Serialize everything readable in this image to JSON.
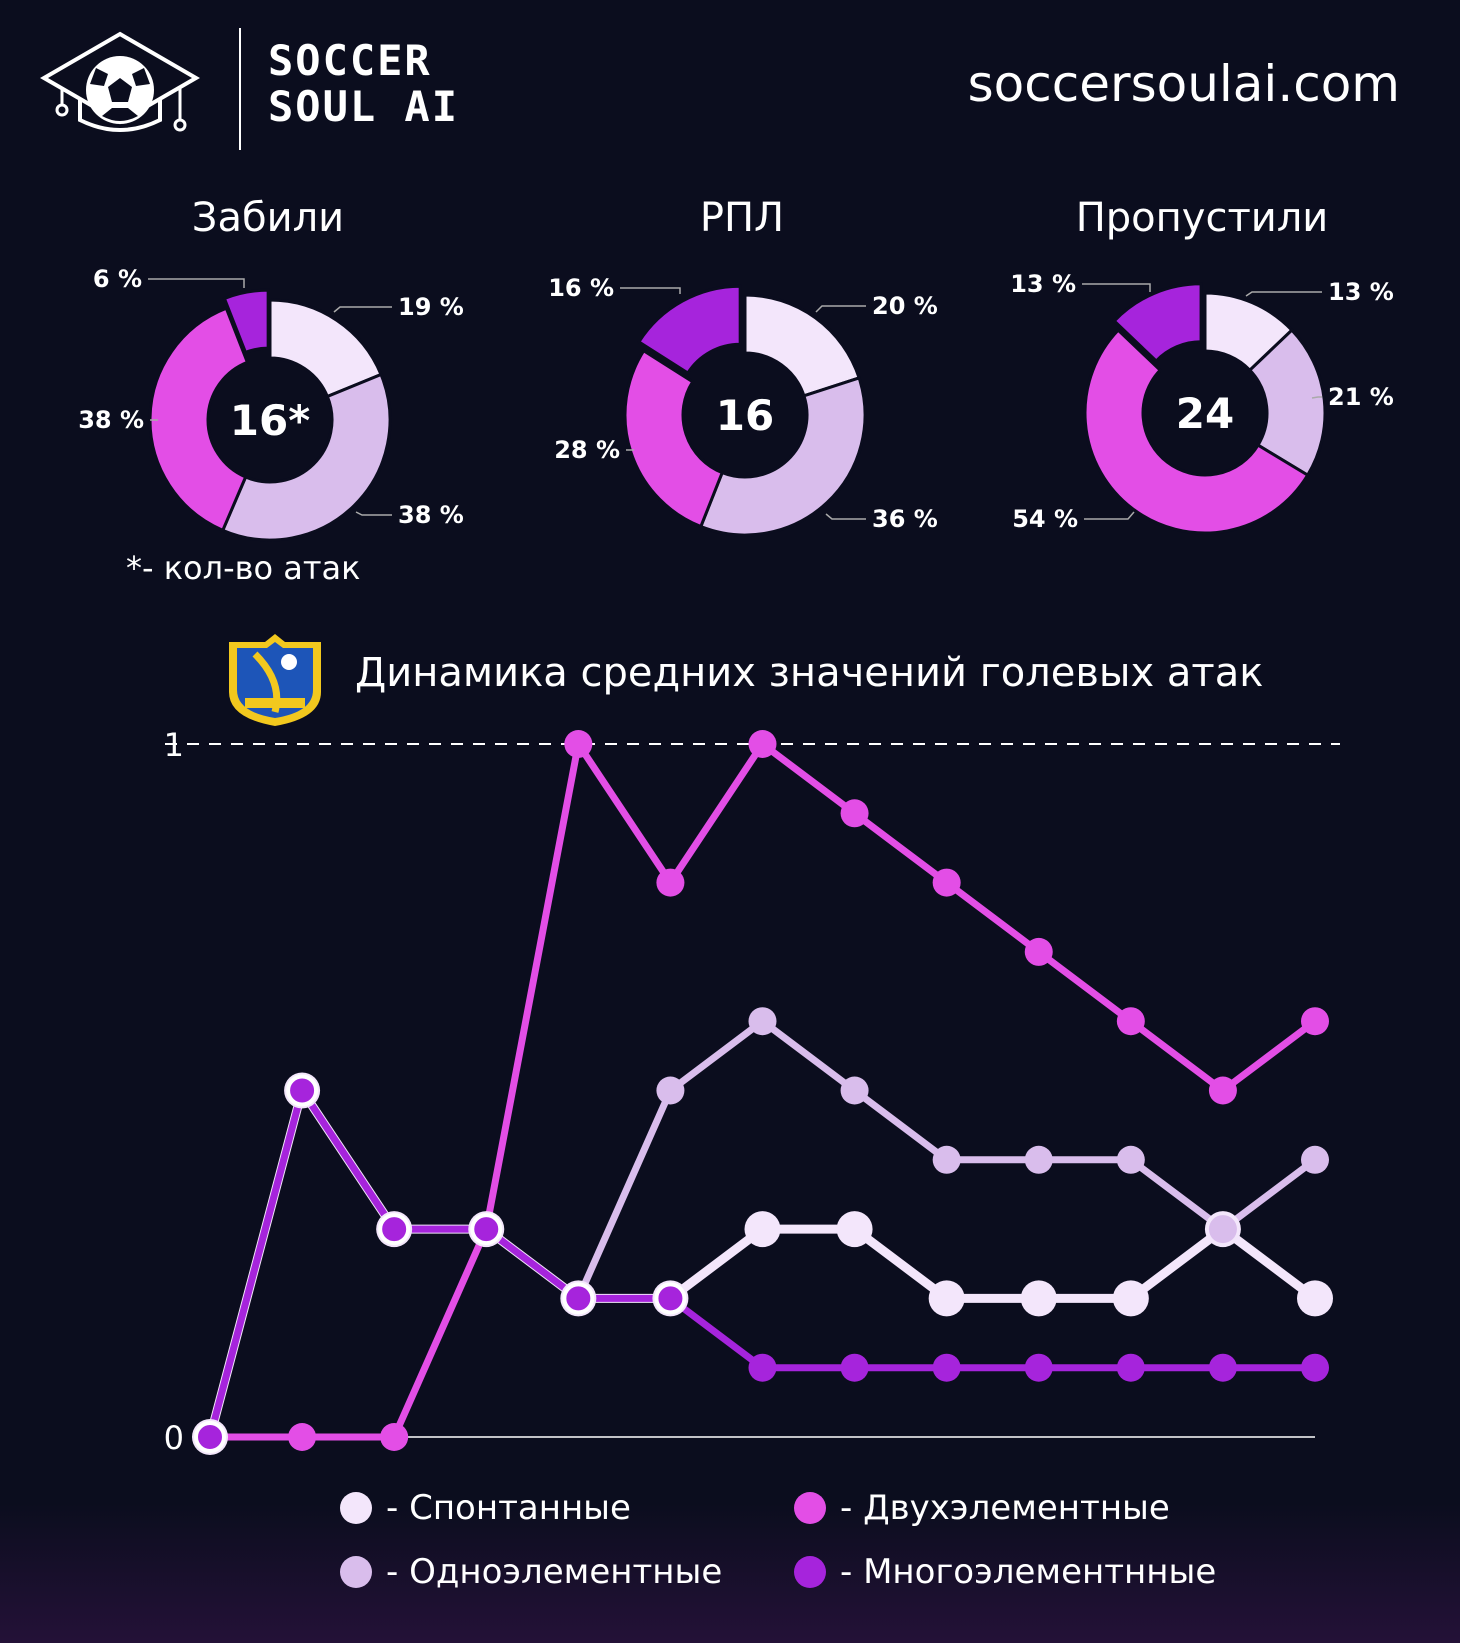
{
  "header": {
    "brand_line_1": "SOCCER",
    "brand_line_2": "SOUL AI",
    "site_url": "soccersoulai.com"
  },
  "colors": {
    "background": "#0b0d1e",
    "spontaneous": "#f3e6fb",
    "one_element": "#d9bdec",
    "two_element": "#e34ee6",
    "multi_element": "#a624dc"
  },
  "footnote": "*- кол-во атак",
  "line_chart_title": "Динамика средних значений голевых атак",
  "legend": [
    {
      "label": "- Спонтанные",
      "color": "#f3e6fb"
    },
    {
      "label": "- Двухэлементные",
      "color": "#e34ee6"
    },
    {
      "label": "- Одноэлементные",
      "color": "#d9bdec"
    },
    {
      "label": "- Многоэлементнные",
      "color": "#a624dc"
    }
  ],
  "chart_data": [
    {
      "type": "pie",
      "title": "Забили",
      "center_label": "16*",
      "categories": [
        "Спонтанные",
        "Одноэлементные",
        "Двухэлементные",
        "Многоэлементнные"
      ],
      "values": [
        19,
        38,
        38,
        6
      ],
      "value_labels": [
        "19 %",
        "38 %",
        "38 %",
        "6 %"
      ]
    },
    {
      "type": "pie",
      "title": "РПЛ",
      "center_label": "16",
      "categories": [
        "Спонтанные",
        "Одноэлементные",
        "Двухэлементные",
        "Многоэлементнные"
      ],
      "values": [
        20,
        36,
        28,
        16
      ],
      "value_labels": [
        "20 %",
        "36 %",
        "28 %",
        "16 %"
      ]
    },
    {
      "type": "pie",
      "title": "Пропустили",
      "center_label": "24",
      "categories": [
        "Спонтанные",
        "Одноэлементные",
        "Двухэлементные",
        "Многоэлементнные"
      ],
      "values": [
        13,
        21,
        54,
        13
      ],
      "value_labels": [
        "13 %",
        "21 %",
        "54 %",
        "13 %"
      ]
    },
    {
      "type": "line",
      "title": "Динамика средних значений голевых атак",
      "x": [
        1,
        2,
        3,
        4,
        5,
        6,
        7,
        8,
        9,
        10,
        11,
        12,
        13
      ],
      "ylim": [
        0,
        1
      ],
      "yticks": [
        "0",
        "1"
      ],
      "series": [
        {
          "name": "Спонтанные",
          "values": [
            0,
            0.5,
            0.3,
            0.3,
            0.2,
            0.2,
            0.3,
            0.3,
            0.2,
            0.2,
            0.2,
            0.3,
            0.2
          ]
        },
        {
          "name": "Одноэлементные",
          "values": [
            0,
            0.5,
            0.3,
            0.3,
            0.2,
            0.5,
            0.6,
            0.5,
            0.4,
            0.4,
            0.4,
            0.3,
            0.4
          ]
        },
        {
          "name": "Двухэлементные",
          "values": [
            0,
            0,
            0,
            0.3,
            1.0,
            0.8,
            1.0,
            0.9,
            0.8,
            0.7,
            0.6,
            0.5,
            0.6
          ]
        },
        {
          "name": "Многоэлементнные",
          "values": [
            0,
            0.5,
            0.3,
            0.3,
            0.2,
            0.2,
            0.1,
            0.1,
            0.1,
            0.1,
            0.1,
            0.1,
            0.1
          ]
        }
      ]
    }
  ]
}
